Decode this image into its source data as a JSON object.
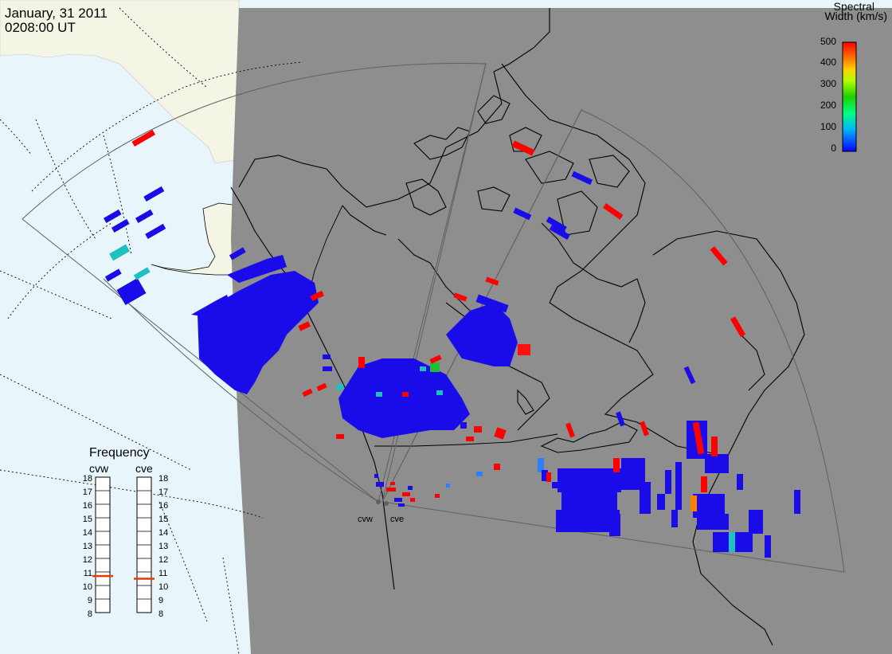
{
  "header": {
    "date": "January, 31 2011",
    "time": "0208:00 UT"
  },
  "colorbar": {
    "title_line1": "Spectral",
    "title_line2": "Width (km/s)",
    "ticks": [
      "500",
      "400",
      "300",
      "200",
      "100",
      "0"
    ],
    "range": [
      0,
      500
    ],
    "colors": [
      "#0a00ff",
      "#00ffff",
      "#00ff00",
      "#ffff00",
      "#ff8000",
      "#ff0000"
    ]
  },
  "frequency_panel": {
    "title": "Frequency",
    "radars": [
      {
        "name": "cvw",
        "frequency_mhz": 10.7
      },
      {
        "name": "cve",
        "frequency_mhz": 10.5
      }
    ],
    "scale_labels": [
      "18",
      "17",
      "16",
      "15",
      "14",
      "13",
      "12",
      "11",
      "10",
      "9",
      "8"
    ],
    "marker_color": "#e04000"
  },
  "sites": [
    {
      "name": "cvw"
    },
    {
      "name": "cve"
    }
  ],
  "colors": {
    "night_region": "#8e8e8e",
    "ocean_day": "#e8f6fc",
    "land_day": "#f5f5e6",
    "coastline": "#000000",
    "fov_outline": "#606060"
  }
}
